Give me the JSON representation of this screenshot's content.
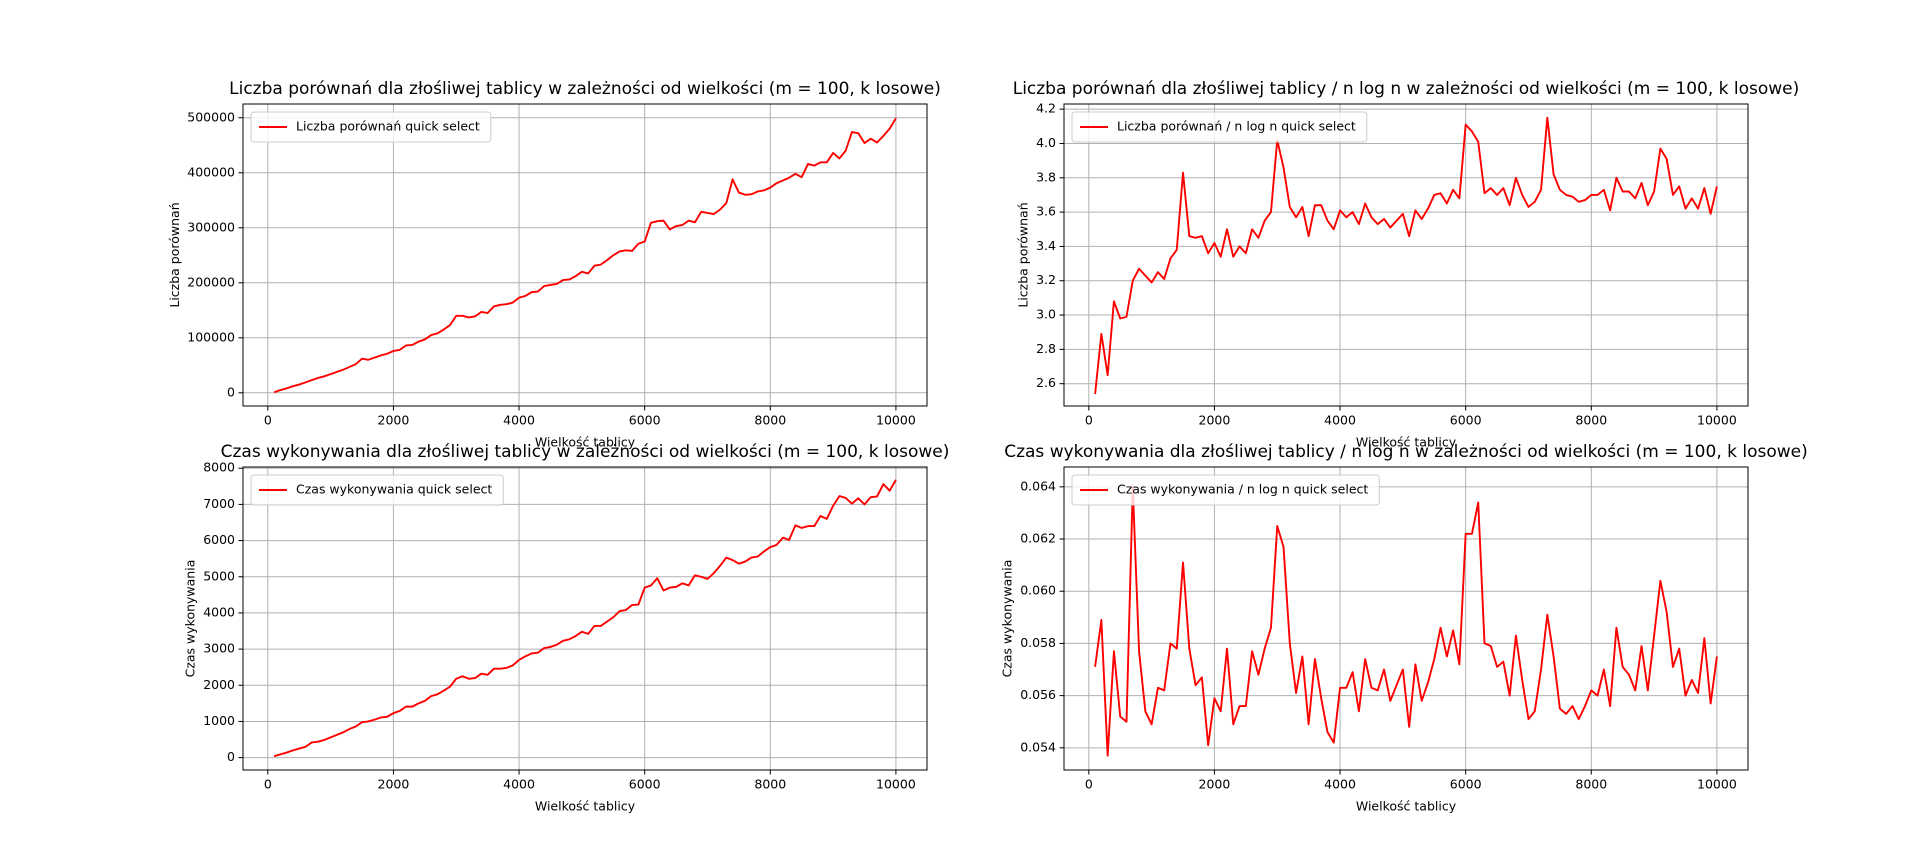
{
  "chart_data": [
    {
      "type": "line",
      "title": "Liczba porównań dla złośliwej tablicy w zależności od wielkości (m = 100, k losowe)",
      "xlabel": "Wielkość tablicy",
      "ylabel": "Liczba porównań",
      "grid": true,
      "legend": "upper left",
      "x": [
        100,
        200,
        300,
        400,
        500,
        600,
        700,
        800,
        900,
        1000,
        1100,
        1200,
        1300,
        1400,
        1500,
        1600,
        1700,
        1800,
        1900,
        2000,
        2100,
        2200,
        2300,
        2400,
        2500,
        2600,
        2700,
        2800,
        2900,
        3000,
        3100,
        3200,
        3300,
        3400,
        3500,
        3600,
        3700,
        3800,
        3900,
        4000,
        4100,
        4200,
        4300,
        4400,
        4500,
        4600,
        4700,
        4800,
        4900,
        5000,
        5100,
        5200,
        5300,
        5400,
        5500,
        5600,
        5700,
        5800,
        5900,
        6000,
        6100,
        6200,
        6300,
        6400,
        6500,
        6600,
        6700,
        6800,
        6900,
        7000,
        7100,
        7200,
        7300,
        7400,
        7500,
        7600,
        7700,
        7800,
        7900,
        8000,
        8100,
        8200,
        8300,
        8400,
        8500,
        8600,
        8700,
        8800,
        8900,
        9000,
        9100,
        9200,
        9300,
        9400,
        9500,
        9600,
        9700,
        9800,
        9900,
        10000
      ],
      "xlim": [
        -395,
        10495
      ],
      "xticks": [
        0,
        2000,
        4000,
        6000,
        8000,
        10000
      ],
      "ylim": [
        -24000,
        525000
      ],
      "yticks": [
        0,
        100000,
        200000,
        300000,
        400000,
        500000
      ],
      "series": [
        {
          "name": "Liczba porównań quick select",
          "color": "red",
          "values": [
            1000,
            5000,
            8000,
            12000,
            15000,
            19000,
            23000,
            27000,
            30000,
            34000,
            38000,
            42000,
            47000,
            52000,
            62000,
            60000,
            64000,
            68000,
            71000,
            76000,
            78000,
            86000,
            87000,
            93000,
            97000,
            105000,
            108000,
            115000,
            123000,
            140000,
            140000,
            137000,
            139000,
            147000,
            145000,
            157000,
            160000,
            161000,
            164000,
            173000,
            176000,
            183000,
            184000,
            194000,
            196000,
            198000,
            205000,
            206000,
            212000,
            220000,
            217000,
            231000,
            233000,
            241000,
            250000,
            257000,
            259000,
            258000,
            271000,
            275000,
            309000,
            312000,
            313000,
            297000,
            303000,
            305000,
            313000,
            310000,
            329000,
            327000,
            325000,
            333000,
            345000,
            388000,
            364000,
            360000,
            361000,
            366000,
            368000,
            373000,
            381000,
            386000,
            391000,
            398000,
            392000,
            416000,
            413000,
            419000,
            419000,
            436000,
            426000,
            440000,
            474000,
            472000,
            454000,
            462000,
            455000,
            467000,
            480000,
            499000
          ]
        }
      ]
    },
    {
      "type": "line",
      "title": "Liczba porównań dla złośliwej tablicy / n log n w zależności od wielkości (m = 100, k losowe)",
      "xlabel": "Wielkość tablicy",
      "ylabel": "Liczba porównań",
      "grid": true,
      "legend": "upper left",
      "x": [
        100,
        200,
        300,
        400,
        500,
        600,
        700,
        800,
        900,
        1000,
        1100,
        1200,
        1300,
        1400,
        1500,
        1600,
        1700,
        1800,
        1900,
        2000,
        2100,
        2200,
        2300,
        2400,
        2500,
        2600,
        2700,
        2800,
        2900,
        3000,
        3100,
        3200,
        3300,
        3400,
        3500,
        3600,
        3700,
        3800,
        3900,
        4000,
        4100,
        4200,
        4300,
        4400,
        4500,
        4600,
        4700,
        4800,
        4900,
        5000,
        5100,
        5200,
        5300,
        5400,
        5500,
        5600,
        5700,
        5800,
        5900,
        6000,
        6100,
        6200,
        6300,
        6400,
        6500,
        6600,
        6700,
        6800,
        6900,
        7000,
        7100,
        7200,
        7300,
        7400,
        7500,
        7600,
        7700,
        7800,
        7900,
        8000,
        8100,
        8200,
        8300,
        8400,
        8500,
        8600,
        8700,
        8800,
        8900,
        9000,
        9100,
        9200,
        9300,
        9400,
        9500,
        9600,
        9700,
        9800,
        9900,
        10000
      ],
      "xlim": [
        -395,
        10495
      ],
      "xticks": [
        0,
        2000,
        4000,
        6000,
        8000,
        10000
      ],
      "ylim": [
        2.47,
        4.23
      ],
      "yticks": [
        2.6,
        2.8,
        {
          "value": 3,
          "label": "3.0"
        },
        3.2,
        3.4,
        3.6,
        3.8,
        {
          "value": 4,
          "label": "4.0"
        },
        4.2
      ],
      "series": [
        {
          "name": "Liczba porównań / n log n quick select",
          "color": "red",
          "values": [
            2.54,
            2.89,
            2.65,
            3.08,
            2.98,
            2.99,
            3.2,
            3.27,
            3.23,
            3.19,
            3.25,
            3.21,
            3.33,
            3.38,
            3.83,
            3.46,
            3.45,
            3.46,
            3.36,
            3.42,
            3.34,
            3.5,
            3.34,
            3.4,
            3.36,
            3.5,
            3.45,
            3.55,
            3.6,
            4.02,
            3.86,
            3.63,
            3.57,
            3.63,
            3.46,
            3.64,
            3.64,
            3.55,
            3.5,
            3.61,
            3.57,
            3.6,
            3.53,
            3.65,
            3.57,
            3.53,
            3.56,
            3.51,
            3.55,
            3.59,
            3.46,
            3.61,
            3.56,
            3.62,
            3.7,
            3.71,
            3.65,
            3.73,
            3.68,
            4.11,
            4.07,
            4.01,
            3.71,
            3.74,
            3.7,
            3.74,
            3.64,
            3.8,
            3.7,
            3.63,
            3.66,
            3.73,
            4.15,
            3.82,
            3.73,
            3.7,
            3.69,
            3.66,
            3.67,
            3.7,
            3.7,
            3.73,
            3.61,
            3.8,
            3.72,
            3.72,
            3.68,
            3.77,
            3.64,
            3.72,
            3.97,
            3.91,
            3.7,
            3.75,
            3.62,
            3.68,
            3.62,
            3.74,
            3.59,
            3.75
          ]
        }
      ]
    },
    {
      "type": "line",
      "title": "Czas wykonywania dla złośliwej tablicy w zależności od wielkości (m = 100, k losowe)",
      "xlabel": "Wielkość tablicy",
      "ylabel": "Czas wykonywania",
      "grid": true,
      "legend": "upper left",
      "x": [
        100,
        200,
        300,
        400,
        500,
        600,
        700,
        800,
        900,
        1000,
        1100,
        1200,
        1300,
        1400,
        1500,
        1600,
        1700,
        1800,
        1900,
        2000,
        2100,
        2200,
        2300,
        2400,
        2500,
        2600,
        2700,
        2800,
        2900,
        3000,
        3100,
        3200,
        3300,
        3400,
        3500,
        3600,
        3700,
        3800,
        3900,
        4000,
        4100,
        4200,
        4300,
        4400,
        4500,
        4600,
        4700,
        4800,
        4900,
        5000,
        5100,
        5200,
        5300,
        5400,
        5500,
        5600,
        5700,
        5800,
        5900,
        6000,
        6100,
        6200,
        6300,
        6400,
        6500,
        6600,
        6700,
        6800,
        6900,
        7000,
        7100,
        7200,
        7300,
        7400,
        7500,
        7600,
        7700,
        7800,
        7900,
        8000,
        8100,
        8200,
        8300,
        8400,
        8500,
        8600,
        8700,
        8800,
        8900,
        9000,
        9100,
        9200,
        9300,
        9400,
        9500,
        9600,
        9700,
        9800,
        9900,
        10000
      ],
      "xlim": [
        -395,
        10495
      ],
      "xticks": [
        0,
        2000,
        4000,
        6000,
        8000,
        10000
      ],
      "ylim": [
        -342,
        8034
      ],
      "yticks": [
        0,
        1000,
        2000,
        3000,
        4000,
        5000,
        6000,
        7000,
        8000
      ],
      "series": [
        {
          "name": "Czas wykonywania quick select",
          "color": "red",
          "values": [
            40,
            90,
            140,
            200,
            250,
            300,
            420,
            440,
            490,
            560,
            630,
            700,
            790,
            860,
            980,
            1000,
            1050,
            1110,
            1130,
            1230,
            1290,
            1410,
            1410,
            1500,
            1570,
            1700,
            1750,
            1850,
            1960,
            2180,
            2250,
            2180,
            2200,
            2320,
            2290,
            2460,
            2460,
            2480,
            2550,
            2700,
            2800,
            2880,
            2900,
            3030,
            3060,
            3120,
            3230,
            3270,
            3360,
            3480,
            3420,
            3640,
            3640,
            3760,
            3880,
            4050,
            4080,
            4220,
            4230,
            4700,
            4760,
            4960,
            4620,
            4700,
            4720,
            4820,
            4760,
            5040,
            5000,
            4940,
            5100,
            5300,
            5530,
            5460,
            5360,
            5420,
            5530,
            5560,
            5700,
            5820,
            5880,
            6080,
            6020,
            6420,
            6350,
            6400,
            6400,
            6680,
            6600,
            6960,
            7230,
            7180,
            7020,
            7170,
            7000,
            7200,
            7220,
            7560,
            7380,
            7680
          ]
        }
      ]
    },
    {
      "type": "line",
      "title": "Czas wykonywania dla złośliwej tablicy / n log n w zależności od wielkości (m = 100, k losowe)",
      "xlabel": "Wielkość tablicy",
      "ylabel": "Czas wykonywania",
      "grid": true,
      "legend": "upper left",
      "x": [
        100,
        200,
        300,
        400,
        500,
        600,
        700,
        800,
        900,
        1000,
        1100,
        1200,
        1300,
        1400,
        1500,
        1600,
        1700,
        1800,
        1900,
        2000,
        2100,
        2200,
        2300,
        2400,
        2500,
        2600,
        2700,
        2800,
        2900,
        3000,
        3100,
        3200,
        3300,
        3400,
        3500,
        3600,
        3700,
        3800,
        3900,
        4000,
        4100,
        4200,
        4300,
        4400,
        4500,
        4600,
        4700,
        4800,
        4900,
        5000,
        5100,
        5200,
        5300,
        5400,
        5500,
        5600,
        5700,
        5800,
        5900,
        6000,
        6100,
        6200,
        6300,
        6400,
        6500,
        6600,
        6700,
        6800,
        6900,
        7000,
        7100,
        7200,
        7300,
        7400,
        7500,
        7600,
        7700,
        7800,
        7900,
        8000,
        8100,
        8200,
        8300,
        8400,
        8500,
        8600,
        8700,
        8800,
        8900,
        9000,
        9100,
        9200,
        9300,
        9400,
        9500,
        9600,
        9700,
        9800,
        9900,
        10000
      ],
      "xlim": [
        -395,
        10495
      ],
      "xticks": [
        0,
        2000,
        4000,
        6000,
        8000,
        10000
      ],
      "ylim": [
        0.05315,
        0.06476
      ],
      "yticks": [
        0.054,
        0.056,
        0.058,
        {
          "value": 0.06,
          "label": "0.060"
        },
        0.062,
        0.064
      ],
      "series": [
        {
          "name": "Czas wykonywania / n log n quick select",
          "color": "red",
          "values": [
            0.0571,
            0.0589,
            0.0537,
            0.0577,
            0.0552,
            0.055,
            0.064,
            0.0577,
            0.0554,
            0.0549,
            0.0563,
            0.0562,
            0.058,
            0.0578,
            0.0611,
            0.0578,
            0.0564,
            0.0567,
            0.0541,
            0.0559,
            0.0554,
            0.0578,
            0.0549,
            0.0556,
            0.0556,
            0.0577,
            0.0568,
            0.0578,
            0.0586,
            0.0625,
            0.0617,
            0.058,
            0.0561,
            0.0575,
            0.0549,
            0.0574,
            0.0559,
            0.0546,
            0.0542,
            0.0563,
            0.0563,
            0.0569,
            0.0554,
            0.0574,
            0.0563,
            0.0562,
            0.057,
            0.0558,
            0.0564,
            0.057,
            0.0548,
            0.0572,
            0.0558,
            0.0565,
            0.0574,
            0.0586,
            0.0575,
            0.0585,
            0.0572,
            0.0622,
            0.0622,
            0.0634,
            0.058,
            0.0579,
            0.0571,
            0.0573,
            0.056,
            0.0583,
            0.0566,
            0.0551,
            0.0554,
            0.057,
            0.0591,
            0.0575,
            0.0555,
            0.0553,
            0.0556,
            0.0551,
            0.0556,
            0.0562,
            0.056,
            0.057,
            0.0556,
            0.0586,
            0.0571,
            0.0568,
            0.0562,
            0.0579,
            0.0562,
            0.0583,
            0.0604,
            0.0592,
            0.0571,
            0.0578,
            0.056,
            0.0566,
            0.0561,
            0.0582,
            0.0557,
            0.0575
          ]
        }
      ]
    }
  ]
}
